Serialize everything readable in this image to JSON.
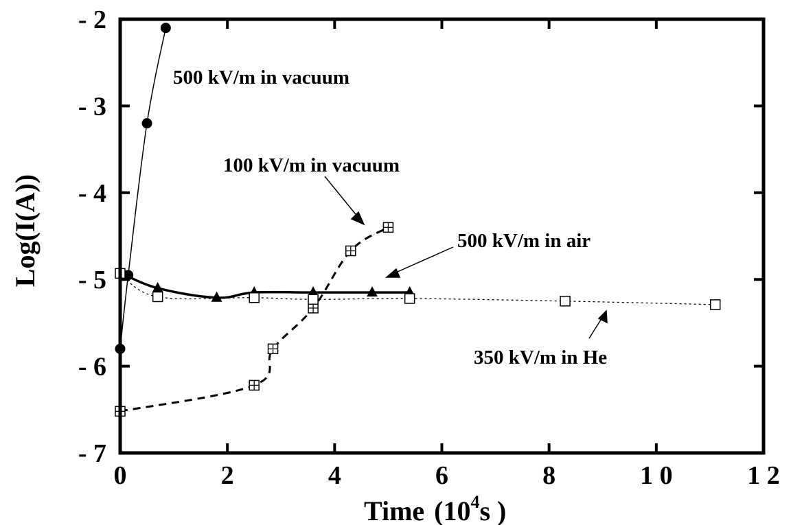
{
  "chart_data": {
    "type": "line",
    "xlabel": "Time",
    "xlabel_unit": "(10",
    "xlabel_unit_exp": "4",
    "xlabel_unit_tail": "s )",
    "ylabel": "Log(I(A))",
    "xlim": [
      0,
      12
    ],
    "ylim": [
      -7,
      -2
    ],
    "x_ticks": [
      0,
      2,
      4,
      6,
      8,
      10,
      12
    ],
    "x_tick_labels": [
      "0",
      "2",
      "4",
      "6",
      "8",
      "1 0",
      "1 2"
    ],
    "y_ticks": [
      -2,
      -3,
      -4,
      -5,
      -6,
      -7
    ],
    "y_tick_labels": [
      "- 2",
      "- 3",
      "- 4",
      "- 5",
      "- 6",
      "- 7"
    ],
    "grid": false,
    "series": [
      {
        "name": "500 kV/m in vacuum",
        "marker": "filled-circle",
        "line_style": "solid-thin",
        "points": [
          [
            0,
            -5.8
          ],
          [
            0.15,
            -4.95
          ],
          [
            0.5,
            -3.2
          ],
          [
            0.85,
            -2.1
          ]
        ]
      },
      {
        "name": "100 kV/m in vacuum",
        "marker": "square-cross",
        "line_style": "dashed",
        "points": [
          [
            0,
            -6.52
          ],
          [
            2.5,
            -6.22
          ],
          [
            2.85,
            -5.8
          ],
          [
            3.6,
            -5.33
          ],
          [
            4.3,
            -4.67
          ],
          [
            5.0,
            -4.4
          ]
        ]
      },
      {
        "name": "500 kV/m in air",
        "marker": "filled-triangle",
        "line_style": "solid-thick",
        "points": [
          [
            0,
            -4.92
          ],
          [
            0.7,
            -5.1
          ],
          [
            1.8,
            -5.21
          ],
          [
            2.5,
            -5.15
          ],
          [
            3.6,
            -5.15
          ],
          [
            4.7,
            -5.15
          ],
          [
            5.4,
            -5.15
          ]
        ]
      },
      {
        "name": "350 kV/m in He",
        "marker": "open-square",
        "line_style": "dotted",
        "points": [
          [
            0,
            -4.93
          ],
          [
            0.7,
            -5.2
          ],
          [
            2.5,
            -5.21
          ],
          [
            3.6,
            -5.23
          ],
          [
            5.4,
            -5.22
          ],
          [
            8.3,
            -5.25
          ],
          [
            11.1,
            -5.29
          ]
        ]
      }
    ],
    "annotations": [
      {
        "text": "500 kV/m in vacuum"
      },
      {
        "text": "100 kV/m in vacuum"
      },
      {
        "text": "500 kV/m in air"
      },
      {
        "text": "350 kV/m in He"
      }
    ]
  }
}
